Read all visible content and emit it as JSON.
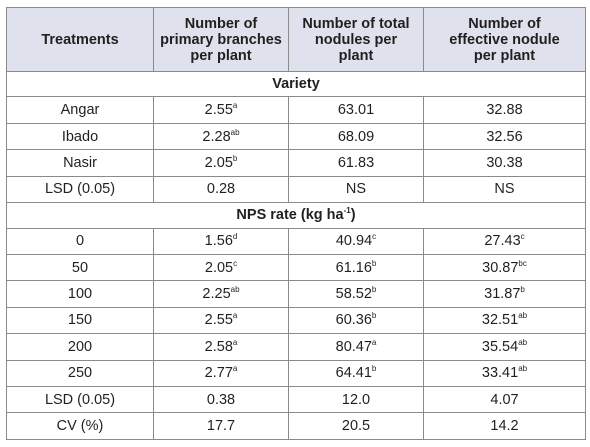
{
  "table": {
    "headers": [
      "Treatments",
      "Number of primary branches per plant",
      "Number of total nodules per plant",
      "Number of effective nodule per plant"
    ],
    "header_lines": [
      [
        "Treatments"
      ],
      [
        "Number of",
        "primary branches",
        "per plant"
      ],
      [
        "Number of total",
        "nodules per",
        "plant"
      ],
      [
        "Number of",
        "effective nodule",
        "per plant"
      ]
    ],
    "sections": [
      {
        "title": "Variety",
        "title_sup": "",
        "title_end": "",
        "rows": [
          {
            "treatment": "Angar",
            "cells": [
              {
                "v": "2.55",
                "s": "a"
              },
              {
                "v": "63.01",
                "s": ""
              },
              {
                "v": "32.88",
                "s": ""
              }
            ]
          },
          {
            "treatment": "Ibado",
            "cells": [
              {
                "v": "2.28",
                "s": "ab"
              },
              {
                "v": "68.09",
                "s": ""
              },
              {
                "v": "32.56",
                "s": ""
              }
            ]
          },
          {
            "treatment": "Nasir",
            "cells": [
              {
                "v": "2.05",
                "s": "b"
              },
              {
                "v": "61.83",
                "s": ""
              },
              {
                "v": "30.38",
                "s": ""
              }
            ]
          },
          {
            "treatment": "LSD (0.05)",
            "cells": [
              {
                "v": "0.28",
                "s": ""
              },
              {
                "v": "NS",
                "s": ""
              },
              {
                "v": "NS",
                "s": ""
              }
            ]
          }
        ]
      },
      {
        "title": "NPS rate (kg ha",
        "title_sup": "-1",
        "title_end": ")",
        "rows": [
          {
            "treatment": "0",
            "cells": [
              {
                "v": "1.56",
                "s": "d"
              },
              {
                "v": "40.94",
                "s": "c"
              },
              {
                "v": "27.43",
                "s": "c"
              }
            ]
          },
          {
            "treatment": "50",
            "cells": [
              {
                "v": "2.05",
                "s": "c"
              },
              {
                "v": "61.16",
                "s": "b"
              },
              {
                "v": "30.87",
                "s": "bc"
              }
            ]
          },
          {
            "treatment": "100",
            "cells": [
              {
                "v": "2.25",
                "s": "ab"
              },
              {
                "v": "58.52",
                "s": "b"
              },
              {
                "v": "31.87",
                "s": "b"
              }
            ]
          },
          {
            "treatment": "150",
            "cells": [
              {
                "v": "2.55",
                "s": "a"
              },
              {
                "v": "60.36",
                "s": "b"
              },
              {
                "v": "32.51",
                "s": "ab"
              }
            ]
          },
          {
            "treatment": "200",
            "cells": [
              {
                "v": "2.58",
                "s": "a"
              },
              {
                "v": "80.47",
                "s": "a"
              },
              {
                "v": "35.54",
                "s": "ab"
              }
            ]
          },
          {
            "treatment": "250",
            "cells": [
              {
                "v": "2.77",
                "s": "a"
              },
              {
                "v": "64.41",
                "s": "b"
              },
              {
                "v": "33.41",
                "s": "ab"
              }
            ]
          },
          {
            "treatment": "LSD (0.05)",
            "cells": [
              {
                "v": "0.38",
                "s": ""
              },
              {
                "v": "12.0",
                "s": ""
              },
              {
                "v": "4.07",
                "s": ""
              }
            ]
          },
          {
            "treatment": "CV (%)",
            "cells": [
              {
                "v": "17.7",
                "s": ""
              },
              {
                "v": "20.5",
                "s": ""
              },
              {
                "v": "14.2",
                "s": ""
              }
            ]
          }
        ]
      }
    ],
    "colors": {
      "header_bg": "#dfe1ec",
      "border": "#8a8a8a",
      "text": "#231f20"
    }
  }
}
